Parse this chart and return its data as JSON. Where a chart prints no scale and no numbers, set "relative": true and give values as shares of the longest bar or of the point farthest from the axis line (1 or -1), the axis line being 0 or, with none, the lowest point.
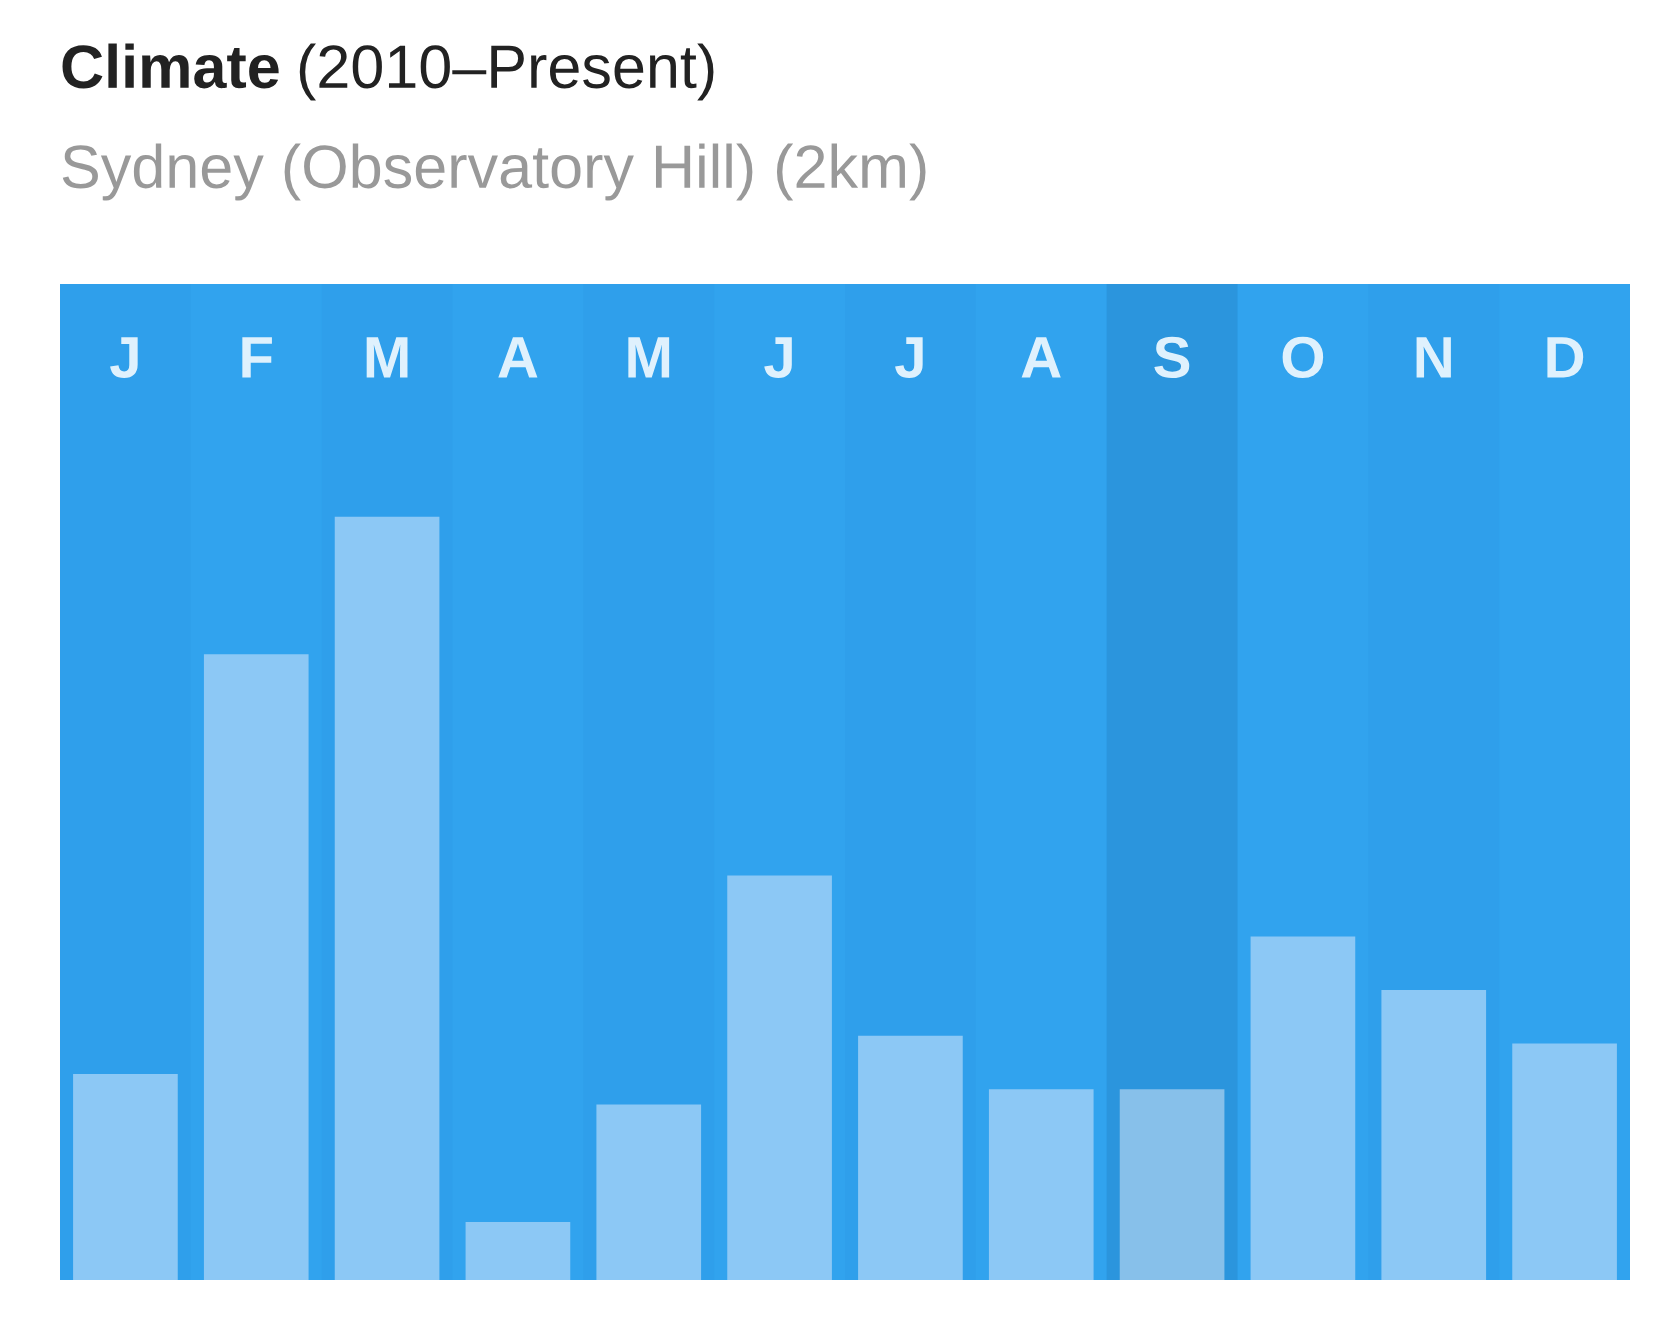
{
  "chart_data": {
    "type": "bar",
    "title": "Climate (2010–Present)",
    "subtitle": "Sydney (Observatory Hill) (2km)",
    "categories": [
      "J",
      "F",
      "M",
      "A",
      "M",
      "J",
      "J",
      "A",
      "S",
      "O",
      "N",
      "D"
    ],
    "values": [
      0.27,
      0.82,
      1,
      0.076,
      0.23,
      0.53,
      0.32,
      0.25,
      0.25,
      0.45,
      0.38,
      0.31
    ],
    "colors": [
      "#8cc8f5",
      "#8cc8f5",
      "#8cc8f5",
      "#8cc8f5",
      "#8cc8f5",
      "#8cc8f5",
      "#8cc8f5",
      "#8cc8f5",
      "#87c0ea",
      "#8cc8f5",
      "#8cc8f5",
      "#8cc8f5"
    ],
    "relative": true,
    "bands": [
      {
        "axis": "x",
        "from": "S",
        "to": "S",
        "color": "#2b95dd"
      }
    ],
    "grid": false,
    "legend": false
  }
}
